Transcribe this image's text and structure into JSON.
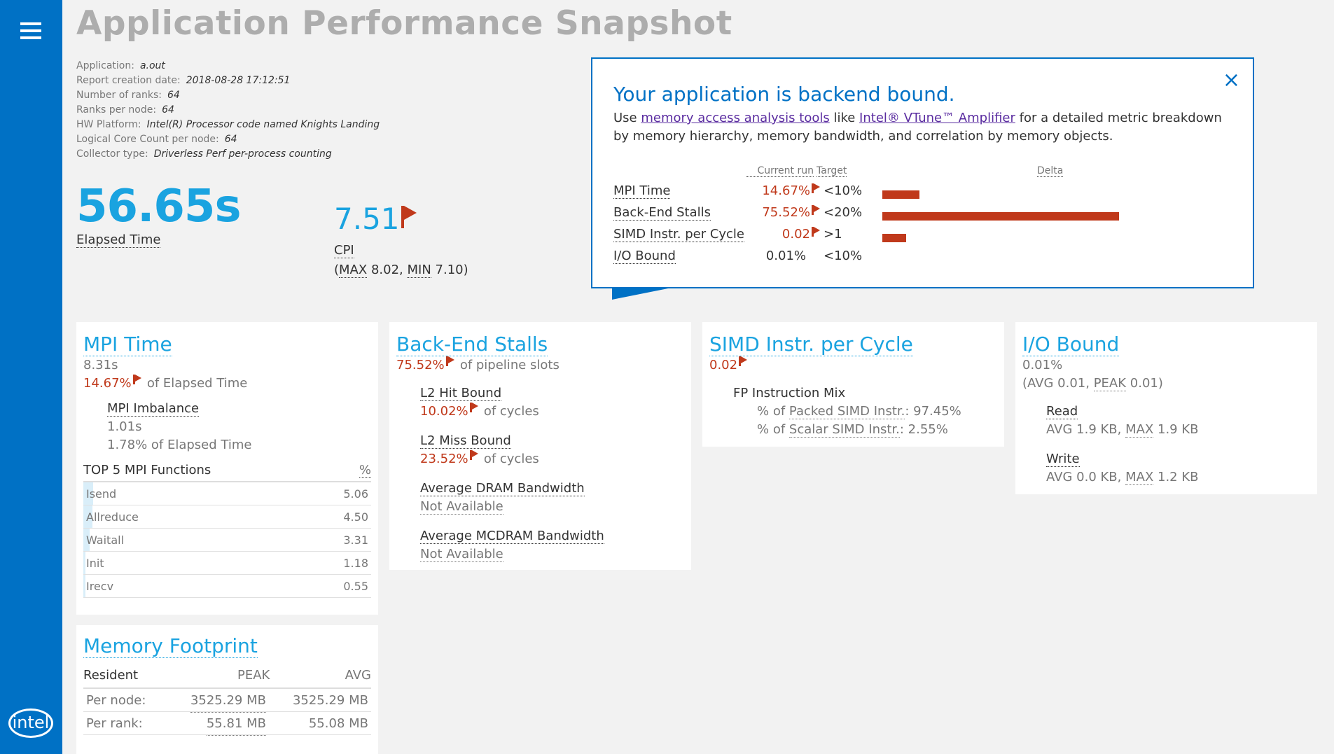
{
  "title": "Application Performance Snapshot",
  "meta": [
    {
      "label": "Application:",
      "value": "a.out"
    },
    {
      "label": "Report creation date:",
      "value": "2018-08-28 17:12:51"
    },
    {
      "label": "Number of ranks:",
      "value": "64"
    },
    {
      "label": "Ranks per node:",
      "value": "64"
    },
    {
      "label": "HW Platform:",
      "value": "Intel(R) Processor code named Knights Landing"
    },
    {
      "label": "Logical Core Count per node:",
      "value": "64"
    },
    {
      "label": "Collector type:",
      "value": "Driverless Perf per-process counting"
    }
  ],
  "elapsed": {
    "value": "56.65s",
    "label": "Elapsed Time"
  },
  "cpi": {
    "value": "7.51",
    "label": "CPI",
    "max_label": "MAX",
    "max": "8.02",
    "min_label": "MIN",
    "min": "7.10",
    "open": "(",
    "close": ")"
  },
  "popup": {
    "close": "×",
    "title": "Your application is backend bound.",
    "text_pre": "Use ",
    "link1": "memory access analysis tools",
    "text_mid": " like ",
    "link2": "Intel® VTune™ Amplifier",
    "text_post": " for a detailed metric breakdown by memory hierarchy, memory bandwidth, and correlation by memory objects.",
    "hdr_current": "Current run",
    "hdr_target": "Target",
    "hdr_delta": "Delta",
    "rows": [
      {
        "name": "MPI Time",
        "current": "14.67%",
        "target": "<10%",
        "delta": 0.156,
        "flag": true
      },
      {
        "name": "Back-End Stalls",
        "current": "75.52%",
        "target": "<20%",
        "delta": 1.0,
        "flag": true
      },
      {
        "name": "SIMD Instr. per Cycle",
        "current": "0.02",
        "target": ">1",
        "delta": 0.1,
        "flag": true
      },
      {
        "name": "I/O Bound",
        "current": "0.01%",
        "target": "<10%",
        "delta": 0,
        "flag": false
      }
    ]
  },
  "mpi": {
    "title": "MPI Time",
    "time": "8.31s",
    "pct": "14.67%",
    "pct_label": "of Elapsed Time",
    "imb_title": "MPI Imbalance",
    "imb_time": "1.01s",
    "imb_pct": "1.78% of Elapsed Time",
    "top_label": "TOP 5 MPI Functions",
    "top_pct": "%",
    "functions": [
      {
        "name": "Isend",
        "value": "5.06",
        "frac": 0.05
      },
      {
        "name": "Allreduce",
        "value": "4.50",
        "frac": 0.045
      },
      {
        "name": "Waitall",
        "value": "3.31",
        "frac": 0.033
      },
      {
        "name": "Init",
        "value": "1.18",
        "frac": 0.012
      },
      {
        "name": "Irecv",
        "value": "0.55",
        "frac": 0.0055
      }
    ]
  },
  "backend": {
    "title": "Back-End Stalls",
    "pct": "75.52%",
    "pct_label": "of pipeline slots",
    "l2hit_title": "L2 Hit Bound",
    "l2hit_pct": "10.02%",
    "l2hit_label": "of cycles",
    "l2miss_title": "L2 Miss Bound",
    "l2miss_pct": "23.52%",
    "l2miss_label": "of cycles",
    "dram_title": "Average DRAM Bandwidth",
    "dram_val": "Not Available",
    "mcdram_title": "Average MCDRAM Bandwidth",
    "mcdram_val": "Not Available"
  },
  "simd": {
    "title": "SIMD Instr. per Cycle",
    "value": "0.02",
    "mix_title": "FP Instruction Mix",
    "packed_pre": "% of ",
    "packed_link": "Packed SIMD Instr.",
    "packed_val": ": 97.45%",
    "scalar_pre": "% of ",
    "scalar_link": "Scalar SIMD Instr.",
    "scalar_val": ": 2.55%"
  },
  "io": {
    "title": "I/O Bound",
    "value": "0.01%",
    "avg_pre": "(AVG 0.01, ",
    "peak_label": "PEAK",
    "avg_post": " 0.01)",
    "read_title": "Read",
    "read_pre": "AVG 1.9 KB, ",
    "read_max_label": "MAX",
    "read_post": " 1.9 KB",
    "write_title": "Write",
    "write_pre": "AVG 0.0 KB, ",
    "write_max_label": "MAX",
    "write_post": " 1.2 KB"
  },
  "memory": {
    "title": "Memory Footprint",
    "col_res": "Resident",
    "col_peak": "PEAK",
    "col_avg": "AVG",
    "rows": [
      {
        "label": "Per node:",
        "peak": "3525.29 MB",
        "avg": "3525.29 MB"
      },
      {
        "label": "Per rank:",
        "peak": "55.81 MB",
        "avg": "55.08 MB"
      }
    ]
  },
  "logo": "intel"
}
